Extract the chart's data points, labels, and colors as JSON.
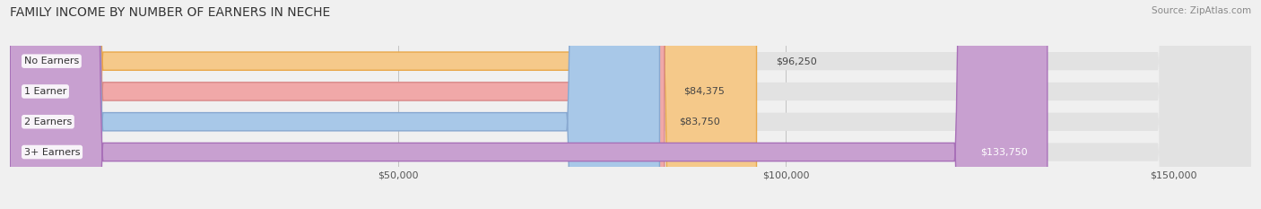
{
  "title": "FAMILY INCOME BY NUMBER OF EARNERS IN NECHE",
  "source": "Source: ZipAtlas.com",
  "categories": [
    "No Earners",
    "1 Earner",
    "2 Earners",
    "3+ Earners"
  ],
  "values": [
    96250,
    84375,
    83750,
    133750
  ],
  "bar_colors": [
    "#f5c98a",
    "#f0a8a8",
    "#a8c8e8",
    "#c8a0d0"
  ],
  "bar_edge_colors": [
    "#e8a84a",
    "#d88888",
    "#88a8d0",
    "#a870b8"
  ],
  "label_colors": [
    "#444444",
    "#444444",
    "#444444",
    "#ffffff"
  ],
  "value_labels": [
    "$96,250",
    "$84,375",
    "$83,750",
    "$133,750"
  ],
  "xlim_min": 0,
  "xlim_max": 160000,
  "xticks": [
    50000,
    100000,
    150000
  ],
  "xtick_labels": [
    "$50,000",
    "$100,000",
    "$150,000"
  ],
  "background_color": "#f0f0f0",
  "bar_background_color": "#e2e2e2",
  "title_fontsize": 10,
  "source_fontsize": 7.5,
  "label_fontsize": 8,
  "value_fontsize": 8,
  "tick_fontsize": 8
}
